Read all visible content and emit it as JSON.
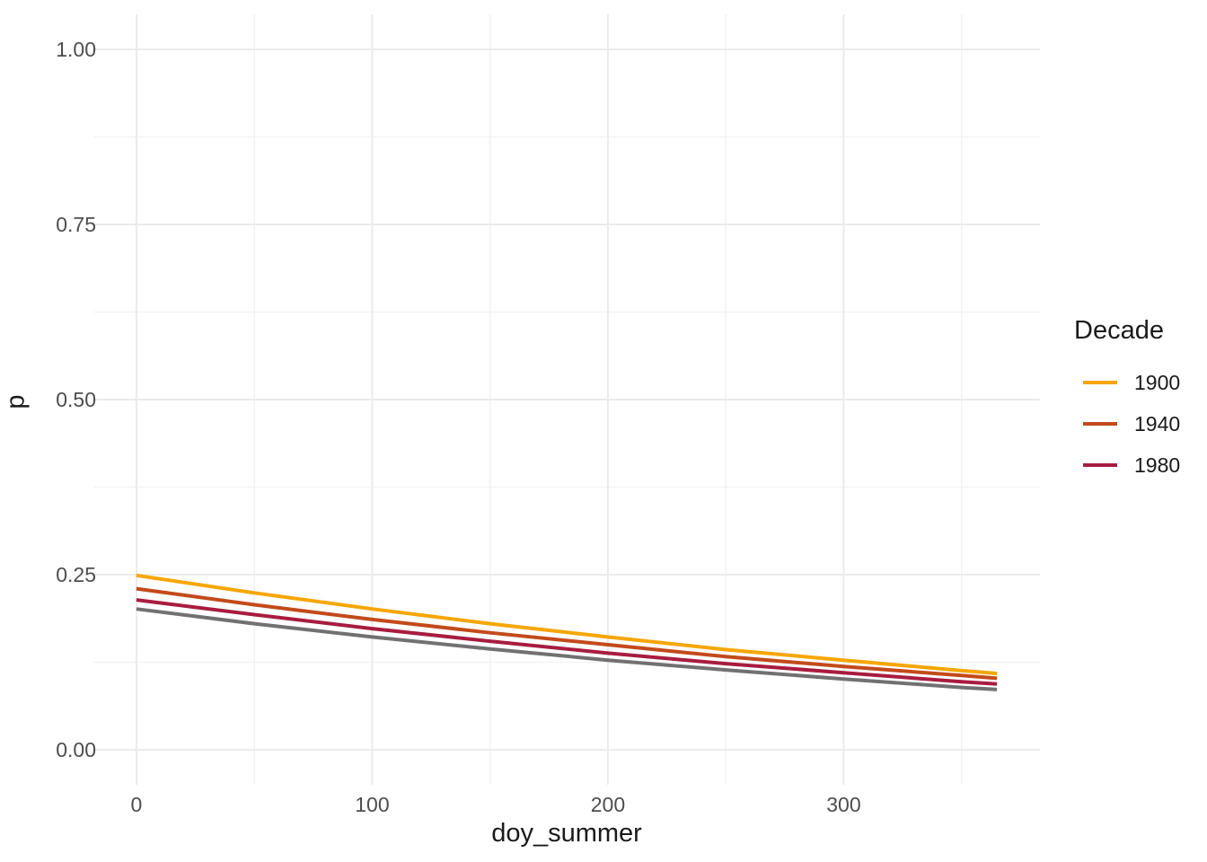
{
  "chart_data": {
    "type": "line",
    "title": "",
    "xlabel": "doy_summer",
    "ylabel": "p",
    "x": [
      0,
      50,
      100,
      150,
      200,
      250,
      300,
      350,
      365
    ],
    "series": [
      {
        "name": "1900",
        "color": "#F6A600",
        "in_legend": true,
        "values": [
          0.249,
          0.224,
          0.201,
          0.18,
          0.161,
          0.143,
          0.128,
          0.113,
          0.109
        ]
      },
      {
        "name": "1940",
        "color": "#C34A1B",
        "in_legend": true,
        "values": [
          0.23,
          0.207,
          0.186,
          0.167,
          0.15,
          0.133,
          0.119,
          0.106,
          0.102
        ]
      },
      {
        "name": "1980",
        "color": "#A81C40",
        "in_legend": true,
        "values": [
          0.214,
          0.193,
          0.173,
          0.155,
          0.138,
          0.123,
          0.11,
          0.097,
          0.094
        ]
      },
      {
        "name": "NA",
        "color": "#717171",
        "in_legend": false,
        "values": [
          0.201,
          0.18,
          0.161,
          0.144,
          0.128,
          0.114,
          0.101,
          0.089,
          0.086
        ]
      }
    ],
    "x_ticks": [
      "0",
      "100",
      "200",
      "300"
    ],
    "x_tick_values": [
      0,
      100,
      200,
      300
    ],
    "x_minor": [
      50,
      150,
      250,
      350
    ],
    "y_ticks": [
      "0.00",
      "0.25",
      "0.50",
      "0.75",
      "1.00"
    ],
    "y_tick_values": [
      0,
      0.25,
      0.5,
      0.75,
      1
    ],
    "y_minor": [
      0.125,
      0.375,
      0.625,
      0.875
    ],
    "xlim": [
      -18.25,
      383.25
    ],
    "ylim": [
      -0.05,
      1.05
    ],
    "grid": "major+minor",
    "legend": {
      "title": "Decade",
      "position": "right",
      "entries": [
        "1900",
        "1940",
        "1980"
      ]
    },
    "style": {
      "grid_major_color": "#EBEBEB",
      "grid_minor_color": "#F1F1F1",
      "line_width": 4,
      "background": "#FFFFFF"
    }
  }
}
